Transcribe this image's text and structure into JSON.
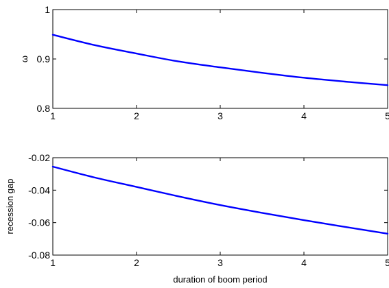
{
  "chart_data": [
    {
      "type": "line",
      "xlabel": "",
      "ylabel": "ω",
      "xlim": [
        1,
        5
      ],
      "ylim": [
        0.8,
        1
      ],
      "xticks": [
        "1",
        "2",
        "3",
        "4",
        "5"
      ],
      "yticks": [
        "0.8",
        "0.9",
        "1"
      ],
      "line_color": "#0000ff",
      "grid": false,
      "series": [
        {
          "x": [
            1,
            1.5,
            2,
            2.5,
            3,
            3.5,
            4,
            4.5,
            5
          ],
          "y": [
            0.949,
            0.928,
            0.911,
            0.895,
            0.883,
            0.872,
            0.862,
            0.854,
            0.847
          ]
        }
      ]
    },
    {
      "type": "line",
      "xlabel": "duration of boom period",
      "ylabel": "recession gap",
      "xlim": [
        1,
        5
      ],
      "ylim": [
        -0.08,
        -0.02
      ],
      "xticks": [
        "1",
        "2",
        "3",
        "4",
        "5"
      ],
      "yticks": [
        "-0.08",
        "-0.06",
        "-0.04",
        "-0.02"
      ],
      "line_color": "#0000ff",
      "grid": false,
      "series": [
        {
          "x": [
            1,
            1.5,
            2,
            2.5,
            3,
            3.5,
            4,
            4.5,
            5
          ],
          "y": [
            -0.0255,
            -0.0322,
            -0.038,
            -0.0438,
            -0.0492,
            -0.054,
            -0.0585,
            -0.0627,
            -0.0668
          ]
        }
      ]
    }
  ]
}
